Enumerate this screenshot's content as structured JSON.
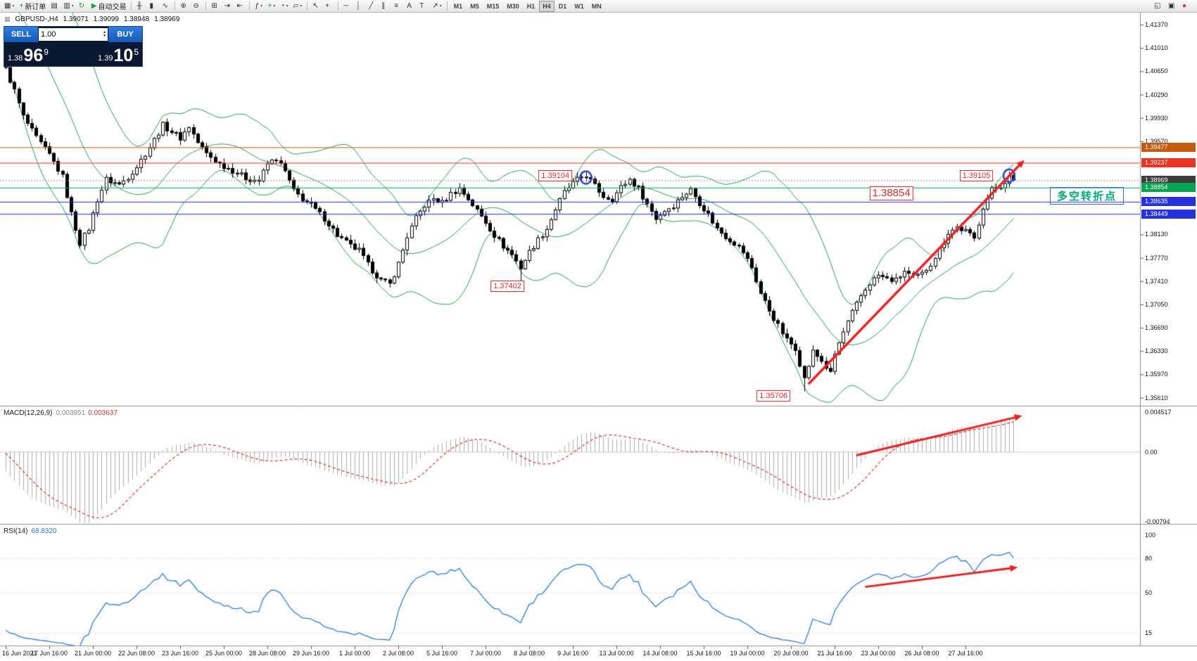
{
  "toolbar": {
    "items": [
      {
        "name": "new-chart-button",
        "glyph": "▦",
        "arrow": true
      },
      {
        "name": "new-order-button",
        "glyph": "+",
        "glyph_color": "#18a035",
        "label": "新订单"
      },
      {
        "name": "charts-grid-button",
        "glyph": "▤"
      },
      {
        "name": "profiles-button",
        "glyph": "▥",
        "arrow": true
      },
      {
        "name": "refresh-button",
        "glyph": "↻",
        "glyph_color": "#18a035"
      },
      {
        "name": "autotrading-button",
        "glyph": "▶",
        "glyph_color": "#18a035",
        "label": "自动交易"
      },
      {
        "sep": true
      },
      {
        "name": "bar-chart-button",
        "glyph": "╫"
      },
      {
        "name": "candlestick-chart-button",
        "glyph": "▮"
      },
      {
        "name": "line-chart-button",
        "glyph": "∿"
      },
      {
        "sep": true
      },
      {
        "name": "zoom-in-button",
        "glyph": "⊕"
      },
      {
        "name": "zoom-out-button",
        "glyph": "⊖"
      },
      {
        "sep": true
      },
      {
        "name": "tile-windows-button",
        "glyph": "⊞"
      },
      {
        "name": "auto-scroll-button",
        "glyph": "⇥"
      },
      {
        "name": "chart-shift-button",
        "glyph": "⇤"
      },
      {
        "sep": true
      },
      {
        "name": "indicators-button",
        "glyph": "ƒ",
        "arrow": true
      },
      {
        "name": "add-indicator-button",
        "glyph": "+",
        "glyph_color": "#18a035",
        "arrow": true
      },
      {
        "name": "periods-button",
        "glyph": "◔",
        "arrow": true
      },
      {
        "name": "templates-button",
        "glyph": "▱",
        "arrow": true
      },
      {
        "sep": true
      },
      {
        "name": "cursor-button",
        "glyph": "↖"
      },
      {
        "name": "crosshair-button",
        "glyph": "+"
      },
      {
        "sep": true
      },
      {
        "name": "horizontal-line-button",
        "glyph": "─"
      },
      {
        "name": "vertical-line-button",
        "glyph": "│"
      },
      {
        "name": "trendline-button",
        "glyph": "╱"
      },
      {
        "name": "channel-button",
        "glyph": "∥"
      },
      {
        "name": "fibonacci-button",
        "glyph": "≡"
      },
      {
        "name": "text-button",
        "glyph": "A"
      },
      {
        "name": "label-button",
        "glyph": "T"
      },
      {
        "name": "arrows-button",
        "glyph": "↗",
        "arrow": true
      },
      {
        "sep": true
      }
    ],
    "timeframes": [
      "M1",
      "M5",
      "M15",
      "M30",
      "H1",
      "H4",
      "D1",
      "W1",
      "MN"
    ],
    "active_timeframe": "H4",
    "right_items": [
      {
        "name": "docking-button",
        "glyph": "◱"
      },
      {
        "name": "fullscreen-button",
        "glyph": "▣"
      },
      {
        "name": "notification-icon",
        "glyph": "●",
        "glyph_color": "#e03131"
      }
    ]
  },
  "quote": {
    "symbol": "GBPUSD-,H4",
    "open": "1.39071",
    "high": "1.39099",
    "low": "1.38948",
    "close": "1.38969"
  },
  "trade_panel": {
    "sell_label": "SELL",
    "buy_label": "BUY",
    "volume": "1.00",
    "sell_prefix": "1.38",
    "sell_big": "96",
    "sell_sup": "9",
    "buy_prefix": "1.39",
    "buy_big": "10",
    "buy_sup": "5"
  },
  "indicators": {
    "macd": {
      "label": "MACD(12,26,9)",
      "v1": "0.003951",
      "v2": "0.003637",
      "axis_labels": [
        "0.004517",
        "0.00",
        "-0.00794"
      ]
    },
    "rsi": {
      "label": "RSI(14)",
      "value": "68.8320",
      "axis_labels": [
        "100",
        "80",
        "50",
        "15"
      ]
    }
  },
  "price_axis": {
    "labels": [
      "1.41370",
      "1.41010",
      "1.40650",
      "1.40290",
      "1.39930",
      "1.39570",
      "1.38130",
      "1.37770",
      "1.37410",
      "1.37050",
      "1.36690",
      "1.36330",
      "1.35970",
      "1.35610"
    ],
    "tags": [
      {
        "text": "1.39477",
        "color": "#c55a11"
      },
      {
        "text": "1.39237",
        "color": "#ea3323"
      },
      {
        "text": "1.38969",
        "color": "#3c3c3c"
      },
      {
        "text": "1.38854",
        "color": "#00a650"
      },
      {
        "text": "1.38635",
        "color": "#2431dc"
      },
      {
        "text": "1.38449",
        "color": "#2431dc"
      }
    ]
  },
  "time_axis": [
    "16 Jun 2021",
    "17 Jun 16:00",
    "21 Jun 00:00",
    "22 Jun 08:00",
    "23 Jun 16:00",
    "25 Jun 00:00",
    "28 Jun 08:00",
    "29 Jun 16:00",
    "1 Jul 00:00",
    "2 Jul 08:00",
    "5 Jul 16:00",
    "7 Jul 00:00",
    "8 Jul 08:00",
    "9 Jul 16:00",
    "13 Jul 00:00",
    "14 Jul 08:00",
    "15 Jul 16:00",
    "19 Jul 00:00",
    "20 Jul 08:00",
    "21 Jul 16:00",
    "23 Jul 00:00",
    "26 Jul 08:00",
    "27 Jul 16:00"
  ],
  "chart_data": {
    "type": "candlestick",
    "symbol": "GBPUSD",
    "timeframe": "H4",
    "bar_count": 232,
    "history_bars": 40,
    "bars_per_time_label": 10,
    "noise": 0.0009,
    "last_close": 1.38969,
    "close_anchors": [
      [
        -40,
        1.4115
      ],
      [
        -25,
        1.42
      ],
      [
        -10,
        1.423
      ],
      [
        -4,
        1.4145
      ],
      [
        0,
        1.4068
      ],
      [
        2,
        1.4035
      ],
      [
        4,
        1.3995
      ],
      [
        7,
        1.3962
      ],
      [
        10,
        1.3936
      ],
      [
        13,
        1.3902
      ],
      [
        15,
        1.3845
      ],
      [
        17,
        1.38
      ],
      [
        19,
        1.3822
      ],
      [
        21,
        1.3867
      ],
      [
        23,
        1.3898
      ],
      [
        26,
        1.389
      ],
      [
        28,
        1.3902
      ],
      [
        30,
        1.3918
      ],
      [
        33,
        1.3948
      ],
      [
        36,
        1.3982
      ],
      [
        38,
        1.3972
      ],
      [
        40,
        1.3962
      ],
      [
        42,
        1.398
      ],
      [
        44,
        1.3955
      ],
      [
        46,
        1.3938
      ],
      [
        49,
        1.3922
      ],
      [
        52,
        1.3912
      ],
      [
        55,
        1.39
      ],
      [
        58,
        1.3896
      ],
      [
        60,
        1.3922
      ],
      [
        62,
        1.393
      ],
      [
        64,
        1.391
      ],
      [
        66,
        1.388
      ],
      [
        68,
        1.3868
      ],
      [
        70,
        1.3858
      ],
      [
        73,
        1.3838
      ],
      [
        76,
        1.3812
      ],
      [
        79,
        1.3795
      ],
      [
        81,
        1.3788
      ],
      [
        83,
        1.3766
      ],
      [
        86,
        1.3742
      ],
      [
        88,
        1.3736
      ],
      [
        90,
        1.3768
      ],
      [
        92,
        1.381
      ],
      [
        94,
        1.3838
      ],
      [
        96,
        1.3858
      ],
      [
        98,
        1.3868
      ],
      [
        100,
        1.3862
      ],
      [
        102,
        1.3876
      ],
      [
        104,
        1.3884
      ],
      [
        106,
        1.3868
      ],
      [
        108,
        1.385
      ],
      [
        110,
        1.3832
      ],
      [
        112,
        1.3812
      ],
      [
        114,
        1.3795
      ],
      [
        116,
        1.3782
      ],
      [
        118,
        1.3762
      ],
      [
        120,
        1.3786
      ],
      [
        122,
        1.3805
      ],
      [
        124,
        1.3822
      ],
      [
        126,
        1.3852
      ],
      [
        128,
        1.3878
      ],
      [
        130,
        1.3892
      ],
      [
        132,
        1.3902
      ],
      [
        133,
        1.3904
      ],
      [
        135,
        1.3888
      ],
      [
        137,
        1.3872
      ],
      [
        139,
        1.3868
      ],
      [
        141,
        1.3886
      ],
      [
        143,
        1.3898
      ],
      [
        145,
        1.3884
      ],
      [
        147,
        1.386
      ],
      [
        149,
        1.3838
      ],
      [
        151,
        1.385
      ],
      [
        153,
        1.3858
      ],
      [
        155,
        1.3872
      ],
      [
        157,
        1.3882
      ],
      [
        159,
        1.3862
      ],
      [
        161,
        1.3844
      ],
      [
        163,
        1.3822
      ],
      [
        165,
        1.381
      ],
      [
        167,
        1.38
      ],
      [
        169,
        1.3786
      ],
      [
        171,
        1.3762
      ],
      [
        173,
        1.3722
      ],
      [
        175,
        1.3696
      ],
      [
        177,
        1.3672
      ],
      [
        179,
        1.365
      ],
      [
        181,
        1.3638
      ],
      [
        183,
        1.359
      ],
      [
        185,
        1.3632
      ],
      [
        187,
        1.3618
      ],
      [
        189,
        1.3598
      ],
      [
        190,
        1.3628
      ],
      [
        192,
        1.3662
      ],
      [
        194,
        1.3692
      ],
      [
        196,
        1.3718
      ],
      [
        198,
        1.3738
      ],
      [
        200,
        1.375
      ],
      [
        202,
        1.3744
      ],
      [
        204,
        1.3742
      ],
      [
        206,
        1.3756
      ],
      [
        208,
        1.3746
      ],
      [
        210,
        1.3752
      ],
      [
        212,
        1.3768
      ],
      [
        214,
        1.379
      ],
      [
        216,
        1.3816
      ],
      [
        218,
        1.3824
      ],
      [
        220,
        1.3818
      ],
      [
        222,
        1.3806
      ],
      [
        224,
        1.3856
      ],
      [
        226,
        1.3882
      ],
      [
        228,
        1.3888
      ],
      [
        230,
        1.3902
      ],
      [
        231,
        1.38969
      ]
    ],
    "extremes": [
      {
        "bar": 0,
        "high": 1.4085
      },
      {
        "bar": 37,
        "high": 1.3992
      },
      {
        "bar": 88,
        "low": 1.3731
      },
      {
        "bar": 118,
        "low": 1.37402
      },
      {
        "bar": 133,
        "high": 1.39104
      },
      {
        "bar": 183,
        "low": 1.35706
      },
      {
        "bar": 230,
        "high": 1.39105
      }
    ],
    "bollinger": {
      "period": 20,
      "deviation": 2
    },
    "hlines": [
      {
        "price": 1.39477,
        "color": "#c55a11"
      },
      {
        "price": 1.39237,
        "color": "#ea3323"
      },
      {
        "price": 1.38854,
        "color": "#00a650"
      },
      {
        "price": 1.38635,
        "color": "#2431dc"
      },
      {
        "price": 1.38449,
        "color": "#2431dc"
      },
      {
        "price": 1.38969,
        "color": "#999999",
        "dash": true,
        "is_current": true
      }
    ],
    "annotations": {
      "flags": [
        {
          "text": "1.39104",
          "bar": 126,
          "price": 1.3904,
          "size": "small"
        },
        {
          "text": "1.37402",
          "bar": 115,
          "price": 1.3733,
          "size": "small"
        },
        {
          "text": "1.35706",
          "bar": 176,
          "price": 1.35635,
          "size": "small"
        },
        {
          "text": "1.38854",
          "bar": 203,
          "price": 1.3876,
          "size": "large"
        },
        {
          "text": "1.39105",
          "bar": 222.5,
          "price": 1.3904,
          "size": "small"
        }
      ],
      "circles": [
        {
          "bar": 133,
          "price": 1.3901
        },
        {
          "bar": 230,
          "price": 1.3904
        }
      ],
      "arrows": [
        {
          "panel": "main",
          "from_bar": 184,
          "from_val": 1.3582,
          "to_bar": 233.5,
          "to_val": 1.3928
        },
        {
          "panel": "macd",
          "from_bar": 195,
          "from_val": -0.0004,
          "to_bar": 233,
          "to_val": 0.0041
        },
        {
          "panel": "rsi",
          "from_bar": 197,
          "from_val": 55,
          "to_bar": 232,
          "to_val": 72
        }
      ],
      "turning_point": {
        "text": "多空转折点",
        "price": 1.3872,
        "text_color": "#00a878",
        "border_color": "#4466ee"
      }
    },
    "colors": {
      "bands": "#2e9d56",
      "candle": "#000000",
      "bull_fill": "#ffffff",
      "bear_fill": "#000000",
      "macd_hist": "#b0b0b0",
      "macd_signal": "#d23b3b",
      "rsi_line": "#2f7ed8",
      "arrow": "#e92222"
    },
    "rsi_levels": [
      80,
      50,
      15
    ]
  }
}
